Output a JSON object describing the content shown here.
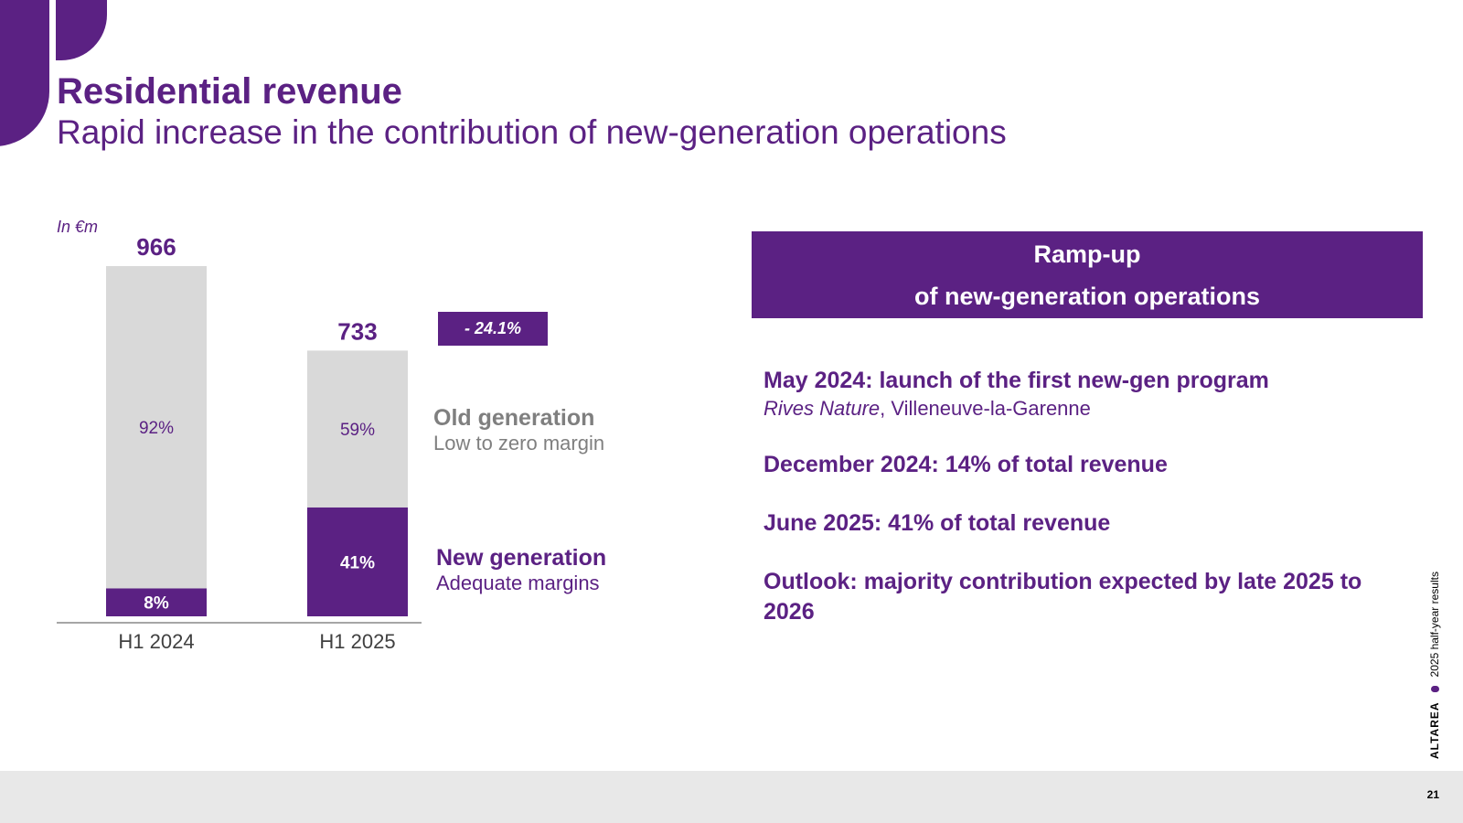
{
  "header": {
    "title": "Residential revenue",
    "subtitle": "Rapid increase in the contribution of new-generation operations"
  },
  "chart_data": {
    "type": "bar",
    "stacked": true,
    "unit_note": "In €m",
    "categories": [
      "H1 2024",
      "H1 2025"
    ],
    "totals": [
      966,
      733
    ],
    "total_labels": [
      "966",
      "733"
    ],
    "series": [
      {
        "name": "New generation",
        "shares_pct": [
          8,
          41
        ],
        "labels": [
          "8%",
          "41%"
        ],
        "color": "#5b2183",
        "label_color": "#ffffff"
      },
      {
        "name": "Old generation",
        "shares_pct": [
          92,
          59
        ],
        "labels": [
          "92%",
          "59%"
        ],
        "color": "#d9d9d9",
        "label_color": "#5b2183"
      }
    ],
    "change_label": "- 24.1%",
    "ylim": [
      0,
      966
    ],
    "legend": {
      "old": {
        "title": "Old generation",
        "subtitle": "Low to zero margin"
      },
      "new": {
        "title": "New generation",
        "subtitle": "Adequate margins"
      }
    }
  },
  "panel": {
    "heading_line1": "Ramp-up",
    "heading_line2": "of new-generation operations",
    "milestones": [
      {
        "text": "May 2024: launch of the first new-gen program",
        "project": "Rives Nature",
        "location": ", Villeneuve-la-Garenne"
      },
      {
        "text": "December 2024: 14% of total revenue"
      },
      {
        "text": "June 2025: 41% of total revenue"
      },
      {
        "text": "Outlook: majority contribution expected by late 2025 to 2026"
      }
    ]
  },
  "footer": {
    "brand": "ALTAREA",
    "report": "2025 half-year results",
    "page_number": "21"
  },
  "colors": {
    "brand_purple": "#5b2183",
    "bar_grey": "#d9d9d9",
    "footer_grey": "#e8e8e8"
  }
}
